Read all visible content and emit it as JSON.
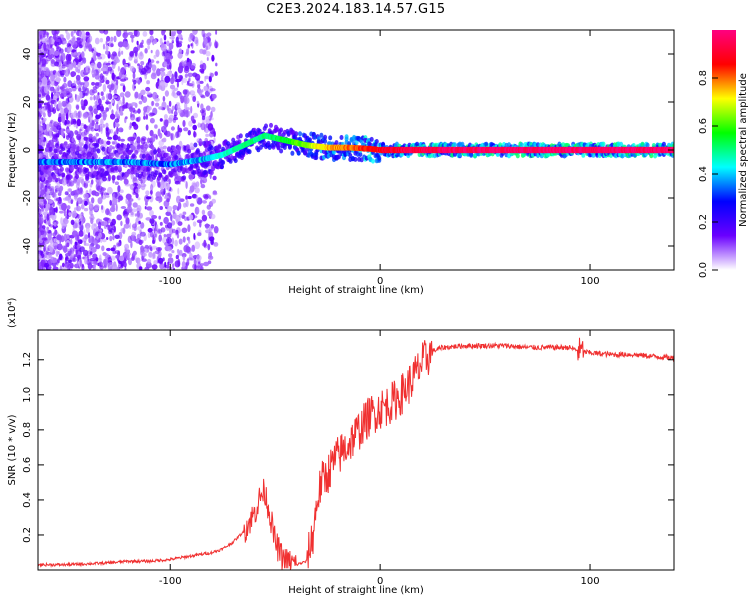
{
  "title": "C2E3.2024.183.14.57.G15",
  "chart_data": [
    {
      "type": "heatmap",
      "xlabel": "Height of straight line (km)",
      "ylabel": "Frequency (Hz)",
      "xlim": [
        -163,
        140
      ],
      "ylim": [
        -50,
        50
      ],
      "xticks": [
        -100,
        0,
        100
      ],
      "yticks": [
        -40,
        -20,
        0,
        20,
        40
      ],
      "grid": false,
      "colorbar": {
        "label": "Normalized spectral amplitude",
        "range": [
          0,
          1
        ],
        "ticks": [
          0.0,
          0.2,
          0.4,
          0.6,
          0.8
        ],
        "tick_labels": [
          "0.0",
          "0.2",
          "0.4",
          "0.6",
          "0.8"
        ],
        "colors": [
          "#ffffff",
          "#6a00ff",
          "#0000ff",
          "#00ffff",
          "#00ff00",
          "#ffff00",
          "#ff0000",
          "#ff0080"
        ]
      },
      "ridge": {
        "x": [
          -163,
          -140,
          -120,
          -100,
          -85,
          -75,
          -65,
          -55,
          -45,
          -35,
          -25,
          -15,
          -5,
          0,
          20,
          60,
          100,
          140
        ],
        "y": [
          -5,
          -5,
          -5,
          -6,
          -4,
          -2,
          2,
          6,
          4,
          2,
          1,
          1,
          0.5,
          0,
          0,
          0,
          0,
          0
        ],
        "amplitude": [
          0.35,
          0.35,
          0.35,
          0.35,
          0.4,
          0.45,
          0.5,
          0.5,
          0.55,
          0.65,
          0.75,
          0.8,
          0.85,
          0.9,
          0.95,
          0.97,
          0.97,
          0.97
        ]
      }
    },
    {
      "type": "line",
      "xlabel": "Height of straight line (km)",
      "ylabel": "SNR (10 * v/v)",
      "y_multiplier": "(x10⁴)",
      "xlim": [
        -163,
        140
      ],
      "ylim": [
        0,
        1.37
      ],
      "xticks": [
        -100,
        0,
        100
      ],
      "yticks": [
        0.2,
        0.4,
        0.6,
        0.8,
        1.0,
        1.2
      ],
      "ytick_labels": [
        "0.2",
        "0.4",
        "0.6",
        "0.8",
        "1.0",
        "1.2"
      ],
      "grid": false,
      "series": [
        {
          "color": "#f03030",
          "x": [
            -163,
            -150,
            -130,
            -120,
            -110,
            -100,
            -90,
            -80,
            -75,
            -70,
            -65,
            -60,
            -57,
            -55,
            -53,
            -50,
            -47,
            -45,
            -40,
            -35,
            -32,
            -30,
            -28,
            -25,
            -22,
            -20,
            -15,
            -10,
            -5,
            0,
            5,
            10,
            15,
            20,
            25,
            30,
            40,
            50,
            60,
            70,
            80,
            90,
            95,
            100,
            110,
            120,
            130,
            140
          ],
          "y": [
            0.03,
            0.03,
            0.04,
            0.05,
            0.05,
            0.06,
            0.08,
            0.1,
            0.12,
            0.16,
            0.22,
            0.32,
            0.42,
            0.45,
            0.35,
            0.16,
            0.08,
            0.05,
            0.03,
            0.05,
            0.2,
            0.4,
            0.5,
            0.55,
            0.62,
            0.65,
            0.72,
            0.8,
            0.88,
            0.92,
            0.95,
            1.0,
            1.08,
            1.18,
            1.25,
            1.27,
            1.28,
            1.28,
            1.28,
            1.27,
            1.27,
            1.27,
            1.25,
            1.24,
            1.23,
            1.23,
            1.22,
            1.21
          ]
        }
      ]
    }
  ]
}
